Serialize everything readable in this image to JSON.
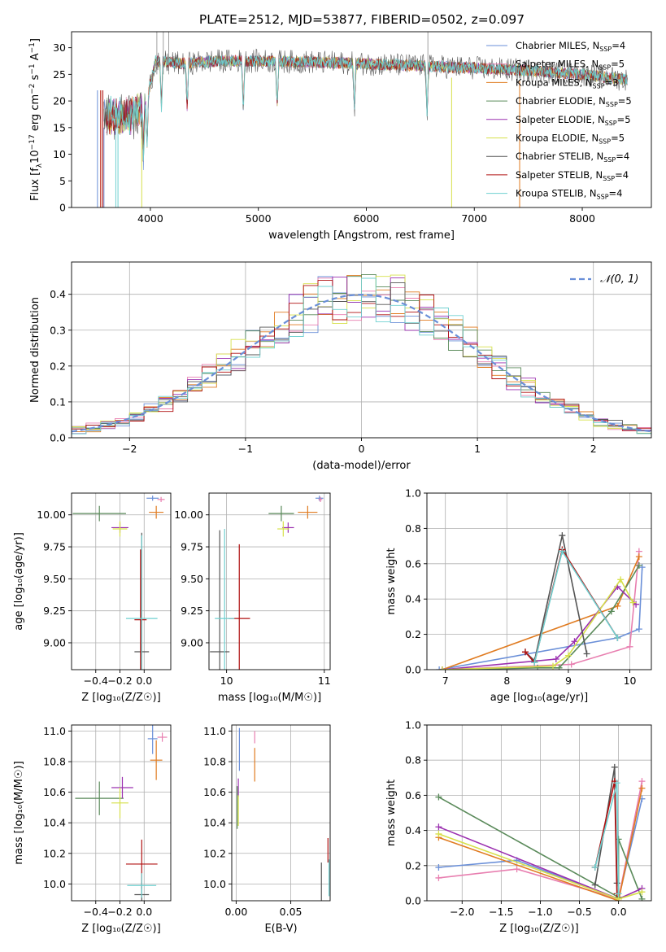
{
  "figure": {
    "title": "PLATE=2512, MJD=53877, FIBERID=0502, z=0.097"
  },
  "legend_entries": [
    {
      "label": "Chabrier MILES, N",
      "sub": "SSP",
      "tail": "=4",
      "color": "#6a8fd8"
    },
    {
      "label": "Salpeter MILES, N",
      "sub": "SSP",
      "tail": "=5",
      "color": "#e87fb0"
    },
    {
      "label": "Kroupa MILES, N",
      "sub": "SSP",
      "tail": "=3",
      "color": "#e07b20"
    },
    {
      "label": "Chabrier ELODIE, N",
      "sub": "SSP",
      "tail": "=5",
      "color": "#5a8a5a"
    },
    {
      "label": "Salpeter ELODIE, N",
      "sub": "SSP",
      "tail": "=5",
      "color": "#9b30b0"
    },
    {
      "label": "Kroupa ELODIE, N",
      "sub": "SSP",
      "tail": "=5",
      "color": "#d6e04a"
    },
    {
      "label": "Chabrier STELIB, N",
      "sub": "SSP",
      "tail": "=4",
      "color": "#555555"
    },
    {
      "label": "Salpeter STELIB, N",
      "sub": "SSP",
      "tail": "=4",
      "color": "#b01010"
    },
    {
      "label": "Kroupa STELIB, N",
      "sub": "SSP",
      "tail": "=4",
      "color": "#6fd0d0"
    }
  ],
  "chart_data": [
    {
      "id": "spectrum",
      "type": "line",
      "xlabel": "wavelength [Angstrom, rest frame]",
      "ylabel_main": "Flux [f",
      "ylabel_sub": "λ",
      "ylabel_mid": "10",
      "ylabel_sup1": "−17",
      "ylabel_mid2": " erg cm",
      "ylabel_sup2": "−2",
      "ylabel_mid3": " s",
      "ylabel_sup3": "−1",
      "ylabel_mid4": " A",
      "ylabel_sup4": "−1",
      "ylabel_end": "]",
      "xlim": [
        3270,
        8640
      ],
      "ylim": [
        0,
        33
      ],
      "xticks": [
        4000,
        5000,
        6000,
        7000,
        8000
      ],
      "yticks": [
        0,
        5,
        10,
        15,
        20,
        25,
        30
      ],
      "grid": false,
      "legend_placement": "top-right",
      "continuum_points": [
        [
          3570,
          17
        ],
        [
          3800,
          17
        ],
        [
          3950,
          19
        ],
        [
          4050,
          27.5
        ],
        [
          4300,
          27
        ],
        [
          4600,
          27.5
        ],
        [
          5000,
          27.5
        ],
        [
          5500,
          27.3
        ],
        [
          6000,
          27
        ],
        [
          6500,
          26.6
        ],
        [
          7000,
          26.2
        ],
        [
          7500,
          25.7
        ],
        [
          8000,
          25
        ],
        [
          8400,
          24
        ]
      ]
    },
    {
      "id": "residuals",
      "type": "line",
      "xlabel": "(data-model)/error",
      "ylabel": "Normed distribution",
      "xlim": [
        -2.5,
        2.5
      ],
      "ylim": [
        0,
        0.49
      ],
      "xticks": [
        -2,
        -1,
        0,
        1,
        2
      ],
      "yticks": [
        0.0,
        0.1,
        0.2,
        0.3,
        0.4
      ],
      "grid": true,
      "legend_label": "𝒩(0, 1)",
      "legend_placement": "top-right",
      "gaussian": {
        "mu": 0,
        "sigma": 1
      }
    },
    {
      "id": "age_vs_Z",
      "type": "scatter",
      "xlabel": "Z [log₁₀(Z/Z☉)]",
      "ylabel": "age  [log₁₀(age/yr)]",
      "xlim": [
        -0.6,
        0.22
      ],
      "ylim": [
        8.79,
        10.17
      ],
      "xticks": [
        -0.4,
        -0.2,
        0.0
      ],
      "yticks": [
        9.0,
        9.25,
        9.5,
        9.75,
        10.0
      ],
      "grid": true,
      "points": [
        {
          "x": 0.07,
          "y": 10.13,
          "xerr": 0.05,
          "yerr": 0.02
        },
        {
          "x": 0.14,
          "y": 10.12,
          "xerr": 0.03,
          "yerr": 0.02
        },
        {
          "x": 0.1,
          "y": 10.02,
          "xerr": 0.06,
          "yerr": 0.05
        },
        {
          "x": -0.37,
          "y": 10.01,
          "xerr": 0.22,
          "yerr": 0.06
        },
        {
          "x": -0.2,
          "y": 9.9,
          "xerr": 0.07,
          "yerr": 0.04
        },
        {
          "x": -0.2,
          "y": 9.89,
          "xerr": 0.06,
          "yerr": 0.06
        },
        {
          "x": -0.02,
          "y": 8.93,
          "xerr": 0.06,
          "yerr": 0.93
        },
        {
          "x": -0.03,
          "y": 9.18,
          "xerr": 0.05,
          "yerr": 0.55
        },
        {
          "x": -0.02,
          "y": 9.19,
          "xerr": 0.13,
          "yerr": 0.65
        }
      ]
    },
    {
      "id": "age_vs_mass",
      "type": "scatter",
      "xlabel": "mass [log₁₀(M/M☉)]",
      "ylabel": "",
      "xlim": [
        9.82,
        11.06
      ],
      "ylim": [
        8.79,
        10.17
      ],
      "xticks": [
        10,
        11
      ],
      "yticks": [
        9.0,
        9.25,
        9.5,
        9.75,
        10.0
      ],
      "grid": true,
      "points": [
        {
          "x": 10.95,
          "y": 10.13,
          "xerr": 0.04,
          "yerr": 0.02
        },
        {
          "x": 10.96,
          "y": 10.12,
          "xerr": 0.02,
          "yerr": 0.02
        },
        {
          "x": 10.83,
          "y": 10.02,
          "xerr": 0.1,
          "yerr": 0.05
        },
        {
          "x": 10.56,
          "y": 10.01,
          "xerr": 0.13,
          "yerr": 0.06
        },
        {
          "x": 10.63,
          "y": 9.9,
          "xerr": 0.06,
          "yerr": 0.04
        },
        {
          "x": 10.58,
          "y": 9.89,
          "xerr": 0.06,
          "yerr": 0.06
        },
        {
          "x": 9.93,
          "y": 8.93,
          "xerr": 0.1,
          "yerr": 0.95
        },
        {
          "x": 10.13,
          "y": 9.19,
          "xerr": 0.11,
          "yerr": 0.58
        },
        {
          "x": 9.98,
          "y": 9.19,
          "xerr": 0.1,
          "yerr": 0.7
        }
      ]
    },
    {
      "id": "weight_vs_age",
      "type": "line",
      "xlabel": "age  [log₁₀(age/yr)]",
      "ylabel": "mass weight",
      "xlim": [
        6.7,
        10.35
      ],
      "ylim": [
        0,
        1.0
      ],
      "xticks": [
        7,
        8,
        9,
        10
      ],
      "yticks": [
        0.0,
        0.2,
        0.4,
        0.6,
        0.8,
        1.0
      ],
      "grid": true,
      "series": [
        {
          "x": [
            6.9,
            9.8,
            10.15,
            10.2
          ],
          "y": [
            0.0,
            0.18,
            0.23,
            0.58
          ]
        },
        {
          "x": [
            6.95,
            9.05,
            10.0,
            10.15
          ],
          "y": [
            0.0,
            0.03,
            0.13,
            0.67
          ]
        },
        {
          "x": [
            6.95,
            9.8,
            10.15
          ],
          "y": [
            0.0,
            0.36,
            0.64
          ]
        },
        {
          "x": [
            6.95,
            8.5,
            8.85,
            9.7,
            10.15
          ],
          "y": [
            0.0,
            0.01,
            0.01,
            0.33,
            0.59
          ]
        },
        {
          "x": [
            6.95,
            8.8,
            9.1,
            9.8,
            10.1
          ],
          "y": [
            0.0,
            0.06,
            0.16,
            0.47,
            0.37
          ]
        },
        {
          "x": [
            6.95,
            8.75,
            9.0,
            9.85,
            10.05
          ],
          "y": [
            0.0,
            0.02,
            0.08,
            0.51,
            0.38
          ]
        },
        {
          "x": [
            8.3,
            8.45,
            8.9,
            9.3
          ],
          "y": [
            0.1,
            0.05,
            0.76,
            0.09
          ]
        },
        {
          "x": [
            8.3,
            8.45,
            8.9,
            9.8
          ],
          "y": [
            0.1,
            0.04,
            0.68,
            0.18
          ]
        },
        {
          "x": [
            8.45,
            8.9,
            9.8
          ],
          "y": [
            0.04,
            0.67,
            0.18
          ]
        }
      ]
    },
    {
      "id": "mass_vs_Z",
      "type": "scatter",
      "xlabel": "Z [log₁₀(Z/Z☉)]",
      "ylabel": "mass [log₁₀(M/M☉)]",
      "xlim": [
        -0.6,
        0.22
      ],
      "ylim": [
        9.89,
        11.04
      ],
      "xticks": [
        -0.4,
        -0.2,
        0.0
      ],
      "yticks": [
        10.0,
        10.2,
        10.4,
        10.6,
        10.8,
        11.0
      ],
      "grid": true,
      "points": [
        {
          "x": 0.07,
          "y": 10.95,
          "xerr": 0.04,
          "yerr": 0.1
        },
        {
          "x": 0.15,
          "y": 10.96,
          "xerr": 0.04,
          "yerr": 0.03
        },
        {
          "x": 0.1,
          "y": 10.81,
          "xerr": 0.05,
          "yerr": 0.13
        },
        {
          "x": -0.37,
          "y": 10.56,
          "xerr": 0.2,
          "yerr": 0.11
        },
        {
          "x": -0.18,
          "y": 10.63,
          "xerr": 0.09,
          "yerr": 0.07
        },
        {
          "x": -0.2,
          "y": 10.53,
          "xerr": 0.07,
          "yerr": 0.1
        },
        {
          "x": -0.02,
          "y": 9.93,
          "xerr": 0.06,
          "yerr": 0.08
        },
        {
          "x": -0.02,
          "y": 10.13,
          "xerr": 0.13,
          "yerr": 0.16
        },
        {
          "x": -0.02,
          "y": 9.99,
          "xerr": 0.12,
          "yerr": 0.08
        }
      ]
    },
    {
      "id": "mass_vs_ebv",
      "type": "scatter",
      "xlabel": "E(B-V)",
      "ylabel": "",
      "xlim": [
        -0.004,
        0.086
      ],
      "ylim": [
        9.89,
        11.04
      ],
      "xticks": [
        0.0,
        0.05
      ],
      "yticks": [
        10.0,
        10.2,
        10.4,
        10.6,
        10.8,
        11.0
      ],
      "grid": true,
      "points": [
        {
          "x": 0.003,
          "y": 10.88,
          "xerr": 0,
          "yerr": 0.14
        },
        {
          "x": 0.017,
          "y": 10.96,
          "xerr": 0,
          "yerr": 0.04
        },
        {
          "x": 0.017,
          "y": 10.78,
          "xerr": 0,
          "yerr": 0.11
        },
        {
          "x": 0.001,
          "y": 10.5,
          "xerr": 0,
          "yerr": 0.14
        },
        {
          "x": 0.002,
          "y": 10.63,
          "xerr": 0,
          "yerr": 0.06
        },
        {
          "x": 0.002,
          "y": 10.48,
          "xerr": 0,
          "yerr": 0.1
        },
        {
          "x": 0.078,
          "y": 9.99,
          "xerr": 0,
          "yerr": 0.15
        },
        {
          "x": 0.084,
          "y": 10.22,
          "xerr": 0,
          "yerr": 0.08
        },
        {
          "x": 0.085,
          "y": 10.04,
          "xerr": 0,
          "yerr": 0.12
        }
      ]
    },
    {
      "id": "weight_vs_Z",
      "type": "line",
      "xlabel": "Z [log₁₀(Z/Z☉)]",
      "ylabel": "mass weight",
      "xlim": [
        -2.45,
        0.42
      ],
      "ylim": [
        0,
        1.0
      ],
      "xticks": [
        -2.0,
        -1.5,
        -1.0,
        -0.5,
        0.0
      ],
      "yticks": [
        0.0,
        0.2,
        0.4,
        0.6,
        0.8,
        1.0
      ],
      "grid": true,
      "series": [
        {
          "x": [
            -2.3,
            -1.3,
            0.0,
            0.3
          ],
          "y": [
            0.19,
            0.23,
            0.01,
            0.58
          ]
        },
        {
          "x": [
            -2.3,
            -1.3,
            0.0,
            0.3
          ],
          "y": [
            0.13,
            0.18,
            0.01,
            0.68
          ]
        },
        {
          "x": [
            -2.3,
            0.0,
            0.3
          ],
          "y": [
            0.36,
            0.0,
            0.64
          ]
        },
        {
          "x": [
            -2.3,
            0.0,
            0.0,
            0.3
          ],
          "y": [
            0.59,
            0.02,
            0.35,
            0.01
          ]
        },
        {
          "x": [
            -2.3,
            0.0,
            0.3
          ],
          "y": [
            0.42,
            0.01,
            0.07
          ]
        },
        {
          "x": [
            -2.3,
            0.0,
            0.3
          ],
          "y": [
            0.38,
            0.01,
            0.05
          ]
        },
        {
          "x": [
            -0.3,
            -0.05,
            -0.02
          ],
          "y": [
            0.09,
            0.76,
            0.1
          ]
        },
        {
          "x": [
            -0.3,
            -0.05,
            -0.02
          ],
          "y": [
            0.19,
            0.68,
            0.04
          ]
        },
        {
          "x": [
            -0.3,
            -0.02,
            0.0
          ],
          "y": [
            0.19,
            0.67,
            0.04
          ]
        }
      ]
    }
  ]
}
